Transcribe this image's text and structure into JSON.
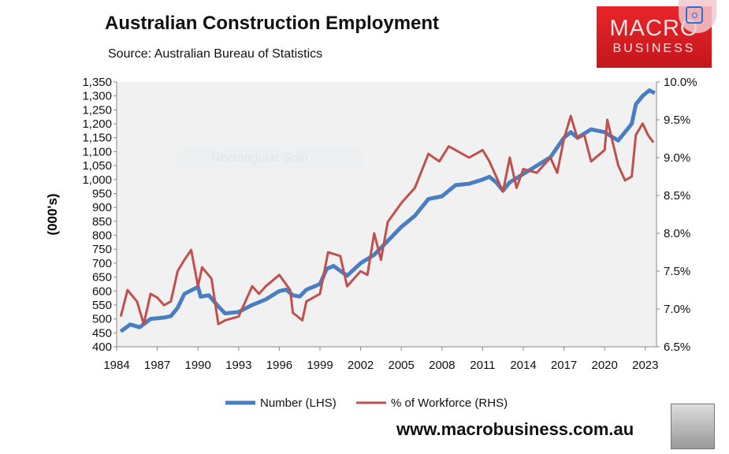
{
  "chart_data": {
    "type": "line",
    "title": "Australian Construction Employment",
    "subtitle": "Source: Australian Bureau of Statistics",
    "ylabel": "(000's)",
    "ylim": [
      400,
      1350
    ],
    "y2lim": [
      6.5,
      10.0
    ],
    "xlim": [
      1984,
      2023.8
    ],
    "yticks": [
      "400",
      "450",
      "500",
      "550",
      "600",
      "650",
      "700",
      "750",
      "800",
      "850",
      "900",
      "950",
      "1,000",
      "1,050",
      "1,100",
      "1,150",
      "1,200",
      "1,250",
      "1,300",
      "1,350"
    ],
    "y2ticks": [
      "6.5%",
      "7.0%",
      "7.5%",
      "8.0%",
      "8.5%",
      "9.0%",
      "9.5%",
      "10.0%"
    ],
    "xticks": [
      "1984",
      "1987",
      "1990",
      "1993",
      "1996",
      "1999",
      "2002",
      "2005",
      "2008",
      "2011",
      "2014",
      "2017",
      "2020",
      "2023"
    ],
    "legend_position": "bottom",
    "series": [
      {
        "name": "Number (LHS)",
        "axis": "left",
        "color": "#4a7ec2",
        "x": [
          1984.3,
          1985,
          1985.7,
          1986.5,
          1987.5,
          1988,
          1988.5,
          1989,
          1990,
          1990.2,
          1990.8,
          1991.5,
          1992,
          1993,
          1994,
          1995,
          1996,
          1996.5,
          1997,
          1997.5,
          1998,
          1999,
          1999.5,
          2000,
          2001,
          2002,
          2003,
          2004,
          2005,
          2006,
          2007,
          2008,
          2009,
          2010,
          2011,
          2011.5,
          2012,
          2012.5,
          2013,
          2014,
          2015,
          2016,
          2017,
          2017.5,
          2018,
          2019,
          2020,
          2021,
          2022,
          2022.3,
          2022.8,
          2023.3,
          2023.7
        ],
        "y": [
          455,
          480,
          470,
          500,
          505,
          510,
          540,
          590,
          615,
          580,
          585,
          545,
          520,
          525,
          550,
          570,
          600,
          605,
          585,
          580,
          605,
          625,
          680,
          690,
          655,
          700,
          730,
          780,
          830,
          870,
          930,
          940,
          980,
          985,
          1000,
          1010,
          990,
          960,
          990,
          1020,
          1050,
          1080,
          1150,
          1170,
          1150,
          1180,
          1170,
          1140,
          1200,
          1270,
          1300,
          1320,
          1310
        ]
      },
      {
        "name": "% of Workforce (RHS)",
        "axis": "right",
        "color": "#c0504d",
        "x": [
          1984.3,
          1984.8,
          1985.5,
          1986,
          1986.5,
          1987,
          1987.5,
          1988,
          1988.5,
          1989,
          1989.5,
          1990,
          1990.3,
          1991,
          1991.5,
          1992,
          1993,
          1994,
          1994.5,
          1995,
          1996,
          1996.8,
          1997,
          1997.7,
          1998,
          1999,
          1999.6,
          2000.5,
          2001,
          2002,
          2002.5,
          2003,
          2003.5,
          2004,
          2005,
          2006,
          2007,
          2007.8,
          2008.5,
          2009,
          2010,
          2011,
          2011.5,
          2012,
          2012.5,
          2013,
          2013.5,
          2014,
          2015,
          2016,
          2016.5,
          2017,
          2017.5,
          2018,
          2018.5,
          2019,
          2020,
          2020.2,
          2021,
          2021.5,
          2022,
          2022.3,
          2022.8,
          2023.2,
          2023.6
        ],
        "y": [
          6.9,
          7.25,
          7.1,
          6.8,
          7.2,
          7.15,
          7.05,
          7.1,
          7.5,
          7.65,
          7.78,
          7.3,
          7.55,
          7.4,
          6.8,
          6.85,
          6.9,
          7.3,
          7.2,
          7.3,
          7.45,
          7.25,
          6.95,
          6.85,
          7.1,
          7.2,
          7.75,
          7.7,
          7.3,
          7.5,
          7.45,
          8.0,
          7.65,
          8.15,
          8.4,
          8.6,
          9.05,
          8.95,
          9.15,
          9.1,
          9.0,
          9.1,
          8.95,
          8.75,
          8.55,
          9.0,
          8.6,
          8.85,
          8.8,
          9.0,
          8.8,
          9.25,
          9.55,
          9.25,
          9.3,
          8.95,
          9.1,
          9.5,
          8.9,
          8.7,
          8.75,
          9.3,
          9.45,
          9.3,
          9.2
        ]
      }
    ]
  },
  "branding": {
    "logo_line1": "MACRO",
    "logo_line2": "BUSINESS",
    "website": "www.macrobusiness.com.au"
  },
  "overlay": {
    "snip_label": "Rectangular Snip"
  }
}
